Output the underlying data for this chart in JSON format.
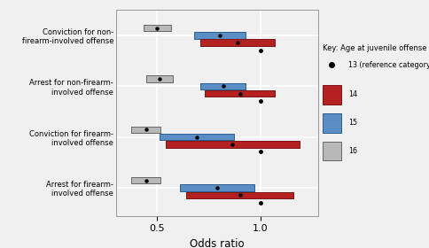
{
  "categories": [
    "Conviction for non-\nfirearm-involved offense",
    "Arrest for non-firearm-\ninvolved offense",
    "Conviction for firearm-\ninvolved offense",
    "Arrest for firearm-\ninvolved offense"
  ],
  "bars": {
    "age16": {
      "color": "#b8b8b8",
      "edgecolor": "#666666",
      "data": [
        [
          0.435,
          0.565
        ],
        [
          0.445,
          0.575
        ],
        [
          0.375,
          0.515
        ],
        [
          0.375,
          0.515
        ]
      ],
      "point": [
        0.5,
        0.51,
        0.445,
        0.445
      ]
    },
    "age15": {
      "color": "#5b8ec4",
      "edgecolor": "#2a5f8f",
      "data": [
        [
          0.68,
          0.93
        ],
        [
          0.71,
          0.93
        ],
        [
          0.51,
          0.87
        ],
        [
          0.61,
          0.97
        ]
      ],
      "point": [
        0.805,
        0.82,
        0.69,
        0.79
      ]
    },
    "age14": {
      "color": "#b52020",
      "edgecolor": "#7a1515",
      "data": [
        [
          0.71,
          1.07
        ],
        [
          0.73,
          1.07
        ],
        [
          0.54,
          1.19
        ],
        [
          0.64,
          1.16
        ]
      ],
      "point": [
        0.89,
        0.9,
        0.865,
        0.9
      ]
    },
    "age13": {
      "color": "#111111",
      "point": [
        1.0,
        1.0,
        1.0,
        1.0
      ]
    }
  },
  "bar_height": 0.13,
  "xlabel": "Odds ratio",
  "xlim": [
    0.3,
    1.28
  ],
  "xticks": [
    0.5,
    1.0
  ],
  "xticklabels": [
    "0.5",
    "1.0"
  ],
  "legend_title": "Key: Age at juvenile offense",
  "legend_labels": [
    "13 (reference category)",
    "14",
    "15",
    "16"
  ],
  "background_color": "#f0f0f0",
  "grid_color": "#ffffff"
}
